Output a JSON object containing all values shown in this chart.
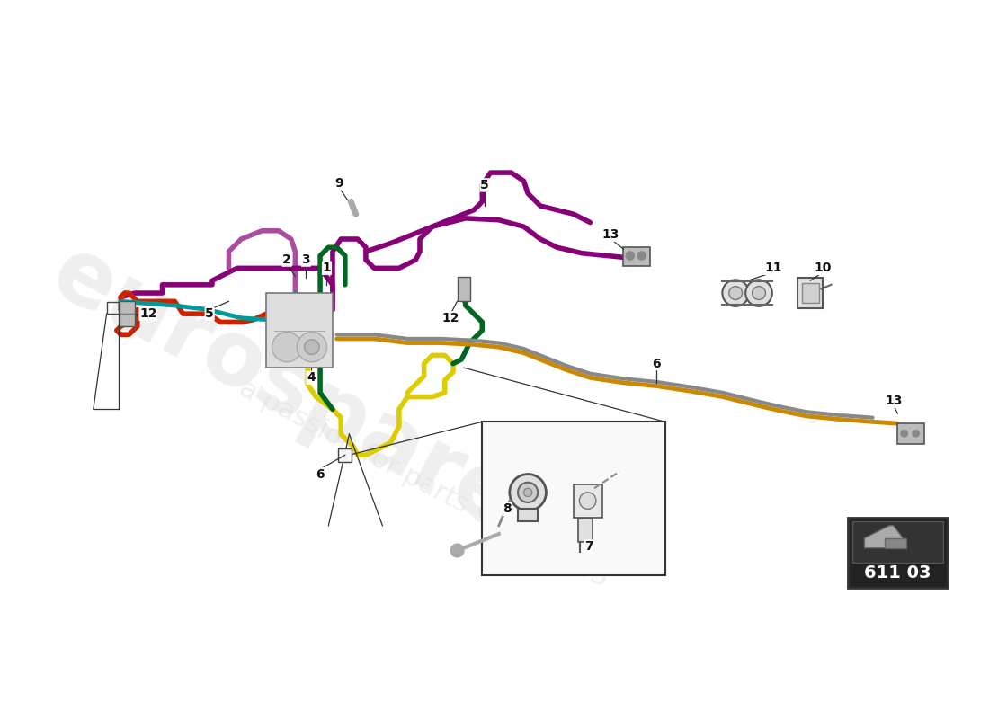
{
  "background_color": "#ffffff",
  "part_number": "611 03",
  "colors": {
    "red": "#cc2200",
    "teal": "#009999",
    "yellow": "#ddcc00",
    "green": "#006622",
    "purple": "#880077",
    "gold": "#cc8800",
    "gray": "#888888",
    "light_gray": "#aaaaaa",
    "dark": "#222222"
  },
  "pipe_lw": 3.5,
  "label_fontsize": 10
}
